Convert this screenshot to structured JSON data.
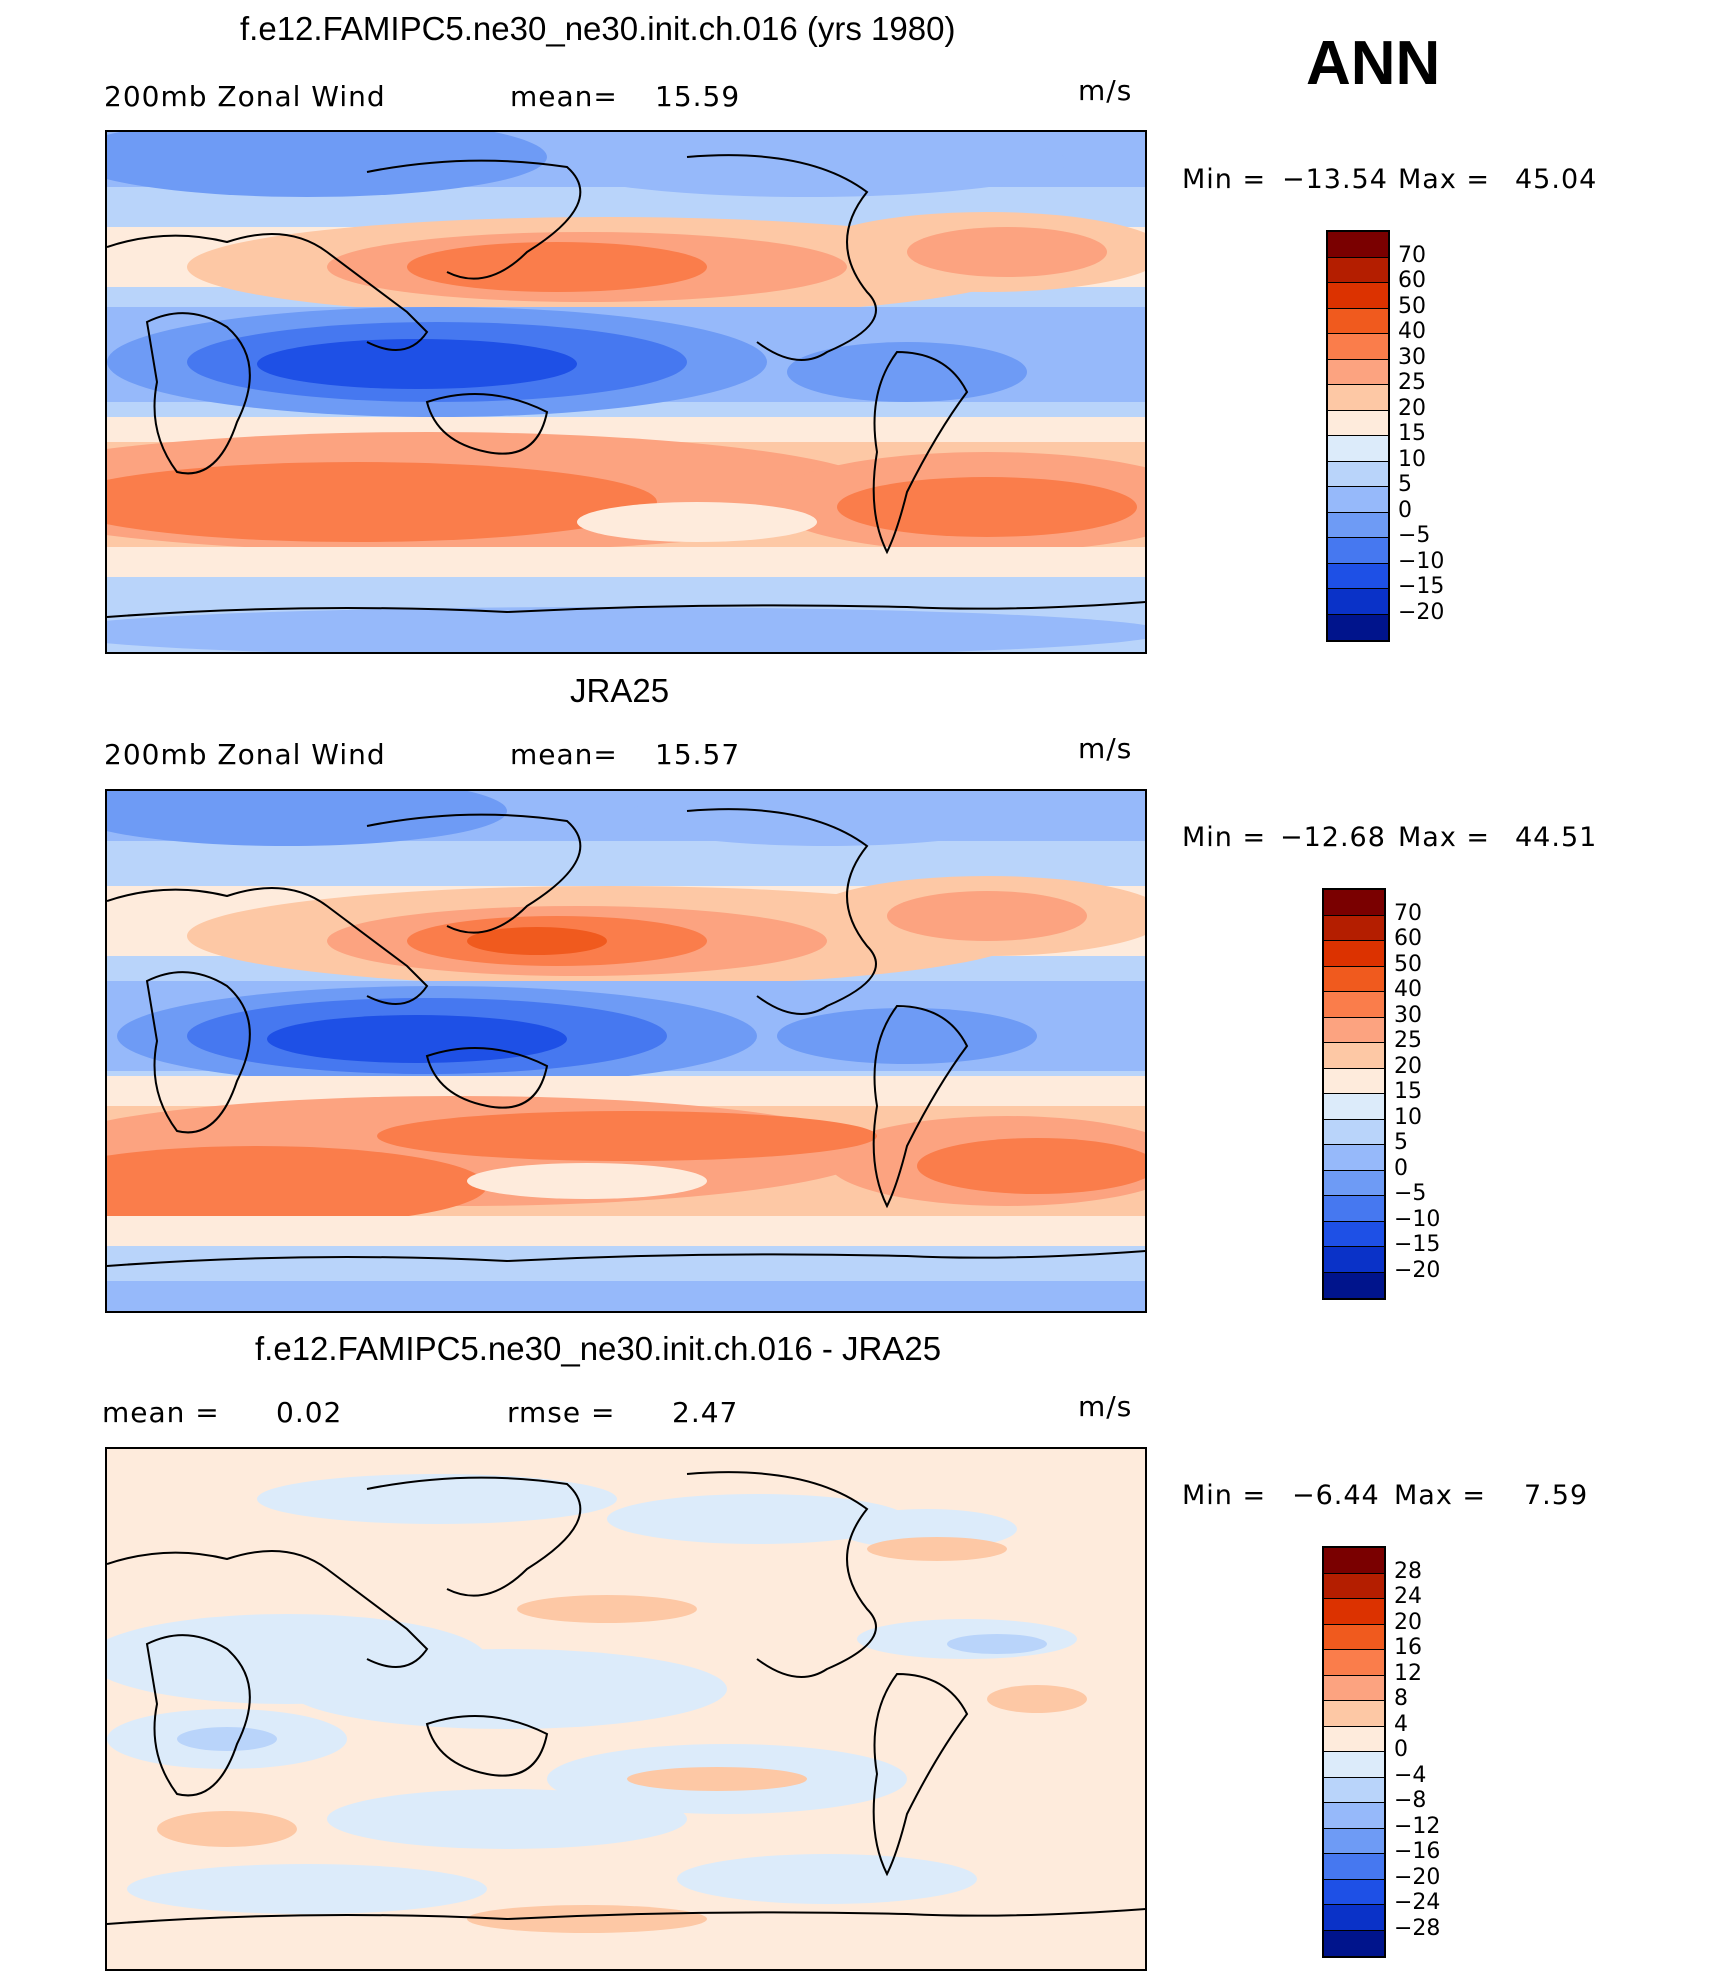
{
  "header": {
    "season": "ANN"
  },
  "colorbar_standard": {
    "labels": [
      "70",
      "60",
      "50",
      "40",
      "30",
      "25",
      "20",
      "15",
      "10",
      "5",
      "0",
      "−5",
      "−10",
      "−15",
      "−20"
    ],
    "colors": [
      "#7a0000",
      "#b41e00",
      "#dc3200",
      "#f05a1e",
      "#fa7d4b",
      "#fca380",
      "#fdc8a5",
      "#feebdc",
      "#dcebfa",
      "#b9d4fa",
      "#96b9fa",
      "#6e9bf5",
      "#4678f0",
      "#1e50e6",
      "#0a32c8",
      "#00148c"
    ]
  },
  "colorbar_diff": {
    "labels": [
      "28",
      "24",
      "20",
      "16",
      "12",
      "8",
      "4",
      "0",
      "−4",
      "−8",
      "−12",
      "−16",
      "−20",
      "−24",
      "−28"
    ],
    "colors": [
      "#7a0000",
      "#b41e00",
      "#dc3200",
      "#f05a1e",
      "#fa7d4b",
      "#fca380",
      "#fdc8a5",
      "#feebdc",
      "#dcebfa",
      "#b9d4fa",
      "#96b9fa",
      "#6e9bf5",
      "#4678f0",
      "#1e50e6",
      "#0a32c8",
      "#00148c"
    ]
  },
  "panels": [
    {
      "title": "f.e12.FAMIPC5.ne30_ne30.init.ch.016 (yrs 1980)",
      "variable": "200mb Zonal Wind",
      "mean_label": "mean=",
      "mean_value": "15.59",
      "units": "m/s",
      "min_label": "Min  =",
      "min_value": "−13.54",
      "max_label": "Max  =",
      "max_value": "45.04"
    },
    {
      "title": "JRA25",
      "variable": "200mb Zonal Wind",
      "mean_label": "mean=",
      "mean_value": "15.57",
      "units": "m/s",
      "min_label": "Min  =",
      "min_value": "−12.68",
      "max_label": "Max  =",
      "max_value": "44.51"
    },
    {
      "title": "f.e12.FAMIPC5.ne30_ne30.init.ch.016 - JRA25",
      "mean_label": "mean  =",
      "mean_value": "0.02",
      "rmse_label": "rmse  =",
      "rmse_value": "2.47",
      "units": "m/s",
      "min_label": "Min  =",
      "min_value": "−6.44",
      "max_label": "Max  =",
      "max_value": "7.59"
    }
  ]
}
